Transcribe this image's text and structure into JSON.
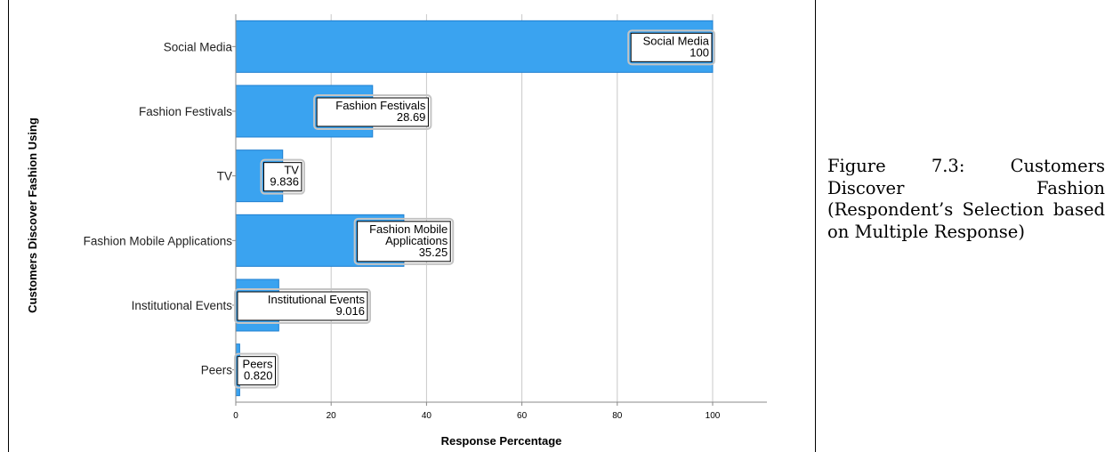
{
  "caption": "Figure 7.3: Customers Discover Fashion (Respondent’s Selection based on Multiple Response)",
  "chart_data": {
    "type": "bar",
    "orientation": "horizontal",
    "categories": [
      "Social Media",
      "Fashion Festivals",
      "TV",
      "Fashion Mobile Applications",
      "Institutional Events",
      "Peers"
    ],
    "values": [
      100,
      28.69,
      9.836,
      35.25,
      9.016,
      0.82
    ],
    "data_labels": [
      {
        "lines": [
          "Social Media",
          "100"
        ]
      },
      {
        "lines": [
          "Fashion Festivals",
          "28.69"
        ]
      },
      {
        "lines": [
          "TV",
          "9.836"
        ]
      },
      {
        "lines": [
          "Fashion Mobile",
          "Applications",
          "35.25"
        ]
      },
      {
        "lines": [
          "Institutional Events",
          "9.016"
        ]
      },
      {
        "lines": [
          "Peers",
          "0.820"
        ]
      }
    ],
    "xlabel": "Response Percentage",
    "ylabel": "Customers Discover Fashion Using",
    "xlim": [
      0,
      110
    ],
    "xticks": [
      "0",
      "20",
      "40",
      "60",
      "80",
      "100"
    ],
    "grid": true,
    "colors": {
      "bar": "#3aa3f0",
      "bar_edge": "#1f7fd0",
      "grid": "#c8c8c8",
      "axis": "#888888"
    }
  }
}
